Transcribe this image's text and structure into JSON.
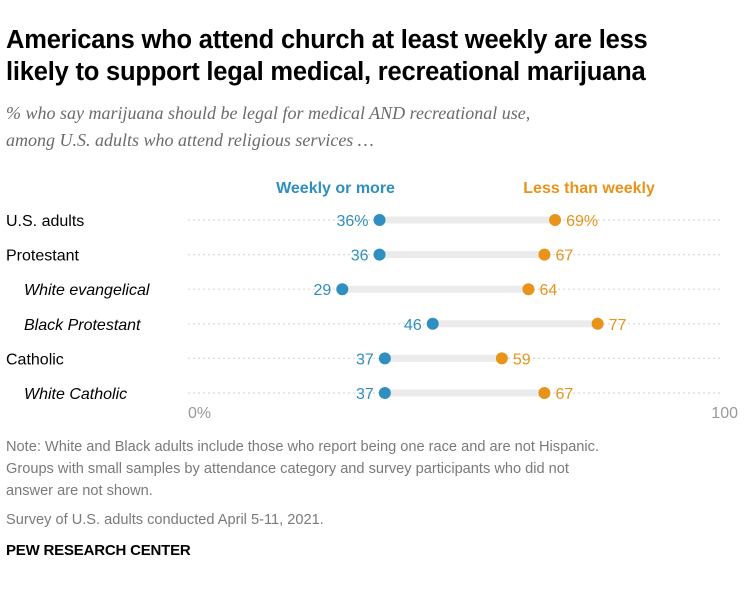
{
  "title_lines": [
    "Americans who attend church at least weekly are less",
    "likely to support legal medical, recreational marijuana"
  ],
  "subtitle_lines": [
    "% who say marijuana should be legal for medical AND recreational use,",
    "among U.S. adults who attend religious services …"
  ],
  "note_lines": [
    "Note: White and Black adults include those who report being one race and are not Hispanic.",
    "Groups with small samples by attendance category and survey participants who did not",
    "answer are not shown."
  ],
  "source": "Survey of U.S. adults conducted April 5-11, 2021.",
  "brand": "PEW RESEARCH CENTER",
  "colors": {
    "weekly": "#2f8fc0",
    "less_than_weekly": "#e8931a",
    "gridline": "#d9d9d9",
    "range_bar": "#ebebeb",
    "axis_text": "#9a9a9a"
  },
  "chart_data": {
    "type": "dot_plot",
    "xlim": [
      0,
      100
    ],
    "axis_tick_labels": [
      "0%",
      "100"
    ],
    "categories": [
      "U.S. adults",
      "Protestant",
      "White evangelical",
      "Black Protestant",
      "Catholic",
      "White Catholic"
    ],
    "italic_categories": [
      "White evangelical",
      "Black Protestant",
      "White Catholic"
    ],
    "series": [
      {
        "name": "Weekly or more",
        "values": [
          36,
          36,
          29,
          46,
          37,
          37
        ],
        "labels": [
          "36%",
          "36",
          "29",
          "46",
          "37",
          "37"
        ]
      },
      {
        "name": "Less than weekly",
        "values": [
          69,
          67,
          64,
          77,
          59,
          67
        ],
        "labels": [
          "69%",
          "67",
          "64",
          "77",
          "59",
          "67"
        ]
      }
    ]
  }
}
